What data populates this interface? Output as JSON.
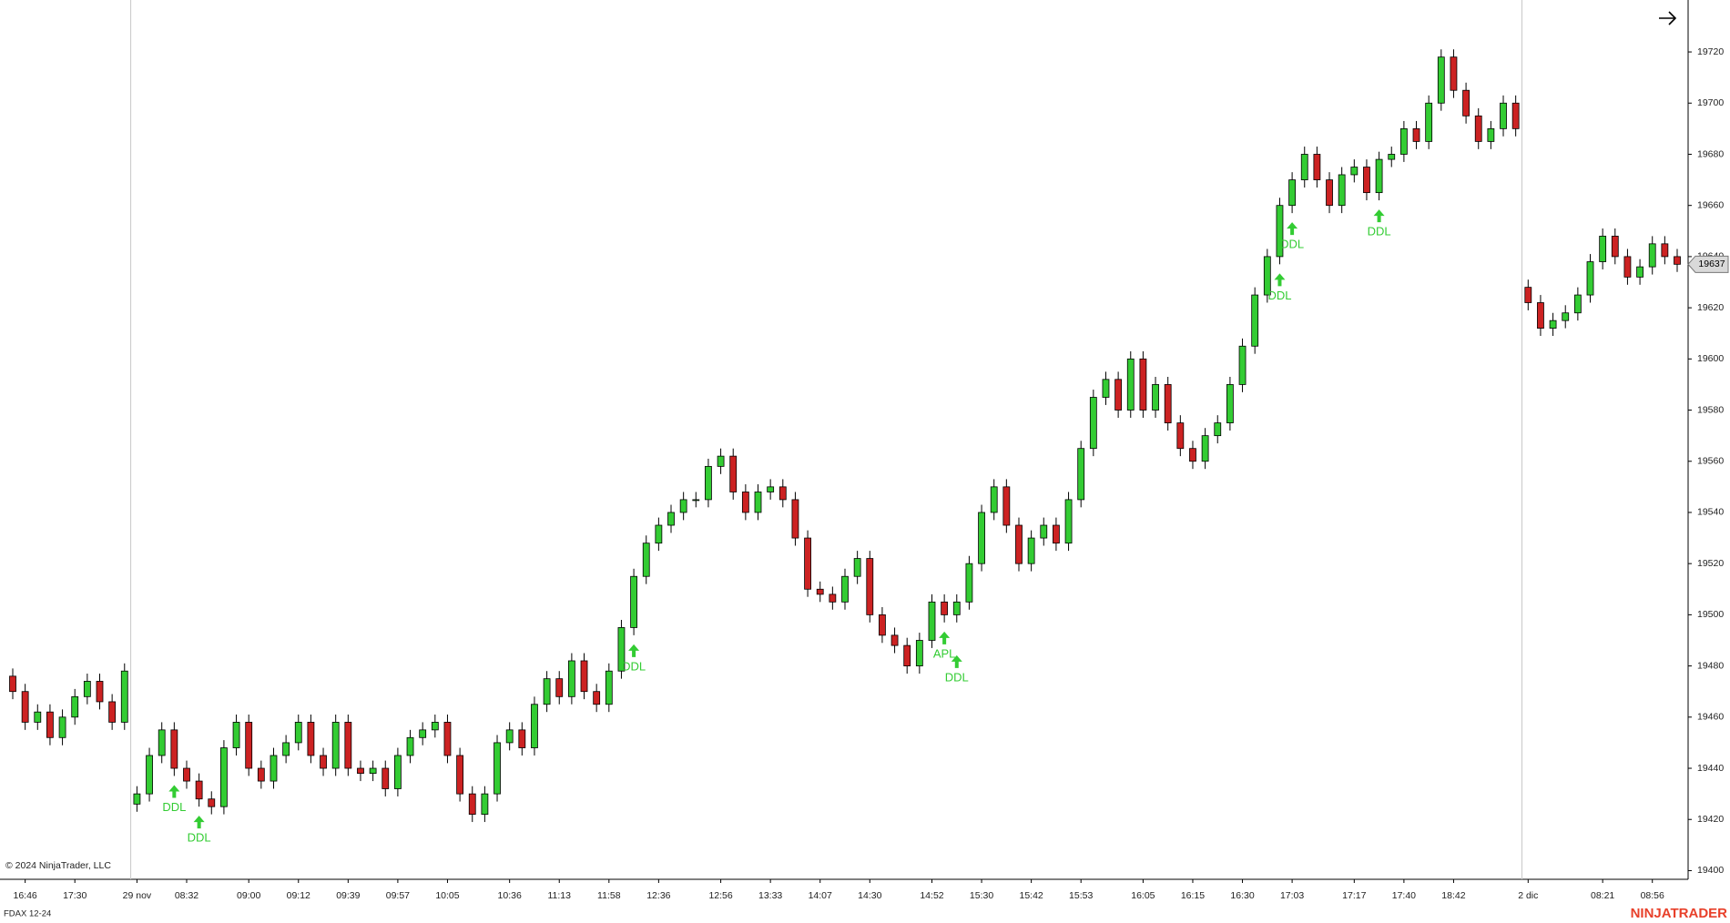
{
  "chart_data": {
    "type": "candlestick",
    "symbol": "FDAX 12-24",
    "copyright": "© 2024 NinjaTrader, LLC",
    "brand": "NINJATRADER",
    "last_price": 19637,
    "ylim": [
      19396.6,
      19740.3
    ],
    "yticks": [
      19400,
      19420,
      19440,
      19460,
      19480,
      19500,
      19520,
      19540,
      19560,
      19580,
      19600,
      19620,
      19640,
      19660,
      19680,
      19700,
      19720
    ],
    "up_color": "#33cc33",
    "down_color": "#cc2222",
    "signal_color": "#33cc33",
    "session_starts": [
      10,
      122
    ],
    "x_labels": [
      {
        "index": 1,
        "label": "16:46"
      },
      {
        "index": 5,
        "label": "17:30"
      },
      {
        "index": 10,
        "label": "29 nov"
      },
      {
        "index": 14,
        "label": "08:32"
      },
      {
        "index": 19,
        "label": "09:00"
      },
      {
        "index": 23,
        "label": "09:12"
      },
      {
        "index": 27,
        "label": "09:39"
      },
      {
        "index": 31,
        "label": "09:57"
      },
      {
        "index": 35,
        "label": "10:05"
      },
      {
        "index": 40,
        "label": "10:36"
      },
      {
        "index": 44,
        "label": "11:13"
      },
      {
        "index": 48,
        "label": "11:58"
      },
      {
        "index": 52,
        "label": "12:36"
      },
      {
        "index": 57,
        "label": "12:56"
      },
      {
        "index": 61,
        "label": "13:33"
      },
      {
        "index": 65,
        "label": "14:07"
      },
      {
        "index": 69,
        "label": "14:30"
      },
      {
        "index": 74,
        "label": "14:52"
      },
      {
        "index": 78,
        "label": "15:30"
      },
      {
        "index": 82,
        "label": "15:42"
      },
      {
        "index": 86,
        "label": "15:53"
      },
      {
        "index": 91,
        "label": "16:05"
      },
      {
        "index": 95,
        "label": "16:15"
      },
      {
        "index": 99,
        "label": "16:30"
      },
      {
        "index": 103,
        "label": "17:03"
      },
      {
        "index": 108,
        "label": "17:17"
      },
      {
        "index": 112,
        "label": "17:40"
      },
      {
        "index": 116,
        "label": "18:42"
      },
      {
        "index": 122,
        "label": "2 dic"
      },
      {
        "index": 128,
        "label": "08:21"
      },
      {
        "index": 132,
        "label": "08:56"
      }
    ],
    "signals": [
      {
        "index": 13,
        "label": "DDL"
      },
      {
        "index": 15,
        "label": "DDL"
      },
      {
        "index": 50,
        "label": "DDL"
      },
      {
        "index": 75,
        "label": "APL"
      },
      {
        "index": 76,
        "label": "DDL"
      },
      {
        "index": 102,
        "label": "DDL"
      },
      {
        "index": 103,
        "label": "DDL"
      },
      {
        "index": 110,
        "label": "DDL"
      }
    ],
    "open": [
      19476,
      19470,
      19458,
      19462,
      19452,
      19460,
      19468,
      19474,
      19466,
      19458,
      19426,
      19430,
      19445,
      19455,
      19440,
      19435,
      19428,
      19425,
      19448,
      19458,
      19440,
      19435,
      19445,
      19450,
      19458,
      19445,
      19440,
      19458,
      19440,
      19438,
      19440,
      19432,
      19445,
      19452,
      19455,
      19458,
      19445,
      19430,
      19422,
      19430,
      19450,
      19455,
      19448,
      19465,
      19475,
      19468,
      19482,
      19470,
      19465,
      19478,
      19495,
      19515,
      19528,
      19535,
      19540,
      19545,
      19545,
      19558,
      19562,
      19548,
      19540,
      19548,
      19550,
      19545,
      19530,
      19510,
      19508,
      19505,
      19515,
      19522,
      19500,
      19492,
      19488,
      19480,
      19490,
      19505,
      19500,
      19505,
      19520,
      19540,
      19550,
      19535,
      19520,
      19530,
      19535,
      19528,
      19545,
      19565,
      19585,
      19592,
      19580,
      19600,
      19580,
      19590,
      19575,
      19565,
      19560,
      19570,
      19575,
      19590,
      19605,
      19625,
      19640,
      19660,
      19670,
      19680,
      19670,
      19660,
      19672,
      19675,
      19665,
      19678,
      19680,
      19690,
      19685,
      19700,
      19718,
      19705,
      19695,
      19685,
      19690,
      19700,
      19628,
      19622,
      19612,
      19615,
      19618,
      19625,
      19638,
      19648,
      19640,
      19632,
      19636,
      19645,
      19640
    ],
    "high": [
      19479,
      19473,
      19465,
      19465,
      19463,
      19471,
      19477,
      19477,
      19469,
      19481,
      19433,
      19448,
      19458,
      19458,
      19443,
      19438,
      19431,
      19451,
      19461,
      19461,
      19443,
      19448,
      19453,
      19461,
      19461,
      19448,
      19461,
      19461,
      19443,
      19443,
      19443,
      19448,
      19455,
      19458,
      19461,
      19461,
      19448,
      19433,
      19433,
      19453,
      19458,
      19458,
      19468,
      19478,
      19478,
      19485,
      19485,
      19473,
      19481,
      19498,
      19518,
      19531,
      19538,
      19543,
      19548,
      19548,
      19561,
      19565,
      19565,
      19551,
      19551,
      19553,
      19553,
      19548,
      19533,
      19513,
      19511,
      19518,
      19525,
      19525,
      19503,
      19495,
      19491,
      19493,
      19508,
      19508,
      19508,
      19523,
      19543,
      19553,
      19553,
      19538,
      19533,
      19538,
      19538,
      19548,
      19568,
      19588,
      19595,
      19595,
      19603,
      19603,
      19593,
      19593,
      19578,
      19568,
      19573,
      19578,
      19593,
      19608,
      19628,
      19643,
      19663,
      19673,
      19683,
      19683,
      19673,
      19675,
      19678,
      19678,
      19681,
      19683,
      19693,
      19693,
      19703,
      19721,
      19721,
      19708,
      19698,
      19693,
      19703,
      19703,
      19631,
      19625,
      19618,
      19621,
      19628,
      19641,
      19651,
      19651,
      19643,
      19639,
      19648,
      19648,
      19643
    ],
    "low": [
      19467,
      19455,
      19455,
      19449,
      19449,
      19457,
      19465,
      19463,
      19455,
      19455,
      19423,
      19427,
      19442,
      19437,
      19432,
      19425,
      19422,
      19422,
      19445,
      19437,
      19432,
      19432,
      19442,
      19447,
      19442,
      19437,
      19437,
      19437,
      19435,
      19435,
      19429,
      19429,
      19442,
      19449,
      19452,
      19442,
      19427,
      19419,
      19419,
      19427,
      19447,
      19445,
      19445,
      19462,
      19465,
      19465,
      19467,
      19462,
      19462,
      19475,
      19492,
      19512,
      19525,
      19532,
      19537,
      19542,
      19542,
      19555,
      19545,
      19537,
      19537,
      19545,
      19542,
      19527,
      19507,
      19505,
      19502,
      19502,
      19512,
      19497,
      19489,
      19485,
      19477,
      19477,
      19487,
      19497,
      19497,
      19502,
      19517,
      19537,
      19532,
      19517,
      19517,
      19527,
      19525,
      19525,
      19542,
      19562,
      19582,
      19577,
      19577,
      19577,
      19577,
      19572,
      19562,
      19557,
      19557,
      19567,
      19572,
      19587,
      19602,
      19622,
      19637,
      19657,
      19667,
      19667,
      19657,
      19657,
      19669,
      19662,
      19662,
      19675,
      19677,
      19682,
      19682,
      19697,
      19702,
      19692,
      19682,
      19682,
      19687,
      19687,
      19619,
      19609,
      19609,
      19612,
      19615,
      19622,
      19635,
      19637,
      19629,
      19629,
      19633,
      19637,
      19634
    ],
    "close": [
      19470,
      19458,
      19462,
      19452,
      19460,
      19468,
      19474,
      19466,
      19458,
      19478,
      19430,
      19445,
      19455,
      19440,
      19435,
      19428,
      19425,
      19448,
      19458,
      19440,
      19435,
      19445,
      19450,
      19458,
      19445,
      19440,
      19458,
      19440,
      19438,
      19440,
      19432,
      19445,
      19452,
      19455,
      19458,
      19445,
      19430,
      19422,
      19430,
      19450,
      19455,
      19448,
      19465,
      19475,
      19468,
      19482,
      19470,
      19465,
      19478,
      19495,
      19515,
      19528,
      19535,
      19540,
      19545,
      19545,
      19558,
      19562,
      19548,
      19540,
      19548,
      19550,
      19545,
      19530,
      19510,
      19508,
      19505,
      19515,
      19522,
      19500,
      19492,
      19488,
      19480,
      19490,
      19505,
      19500,
      19505,
      19520,
      19540,
      19550,
      19535,
      19520,
      19530,
      19535,
      19528,
      19545,
      19565,
      19585,
      19592,
      19580,
      19600,
      19580,
      19590,
      19575,
      19565,
      19560,
      19570,
      19575,
      19590,
      19605,
      19625,
      19640,
      19660,
      19670,
      19680,
      19670,
      19660,
      19672,
      19675,
      19665,
      19678,
      19680,
      19690,
      19685,
      19700,
      19718,
      19705,
      19695,
      19685,
      19690,
      19700,
      19690,
      19622,
      19612,
      19615,
      19618,
      19625,
      19638,
      19648,
      19640,
      19632,
      19636,
      19645,
      19640,
      19637
    ]
  }
}
